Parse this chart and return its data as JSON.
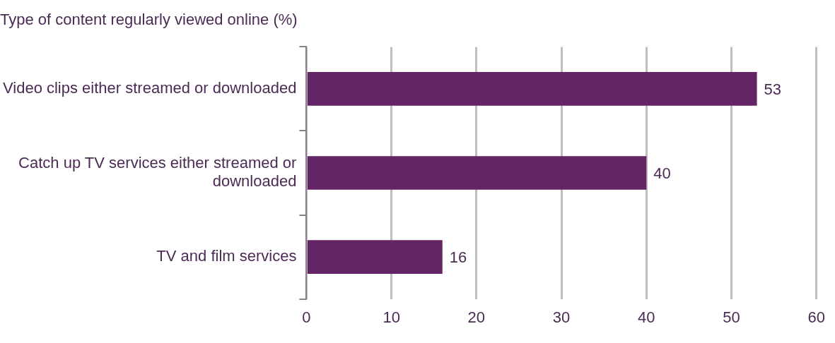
{
  "chart_data": {
    "type": "bar",
    "orientation": "horizontal",
    "title": "Type of content regularly viewed online (%)",
    "categories": [
      "Video clips either streamed or downloaded",
      "Catch up TV services either streamed or downloaded",
      "TV and film services"
    ],
    "values": [
      53,
      40,
      16
    ],
    "color": "#642566",
    "xlim": [
      0,
      60
    ],
    "xticks": [
      0,
      10,
      20,
      30,
      40,
      50,
      60
    ],
    "grid": "x",
    "data_labels": true,
    "legend": false
  }
}
